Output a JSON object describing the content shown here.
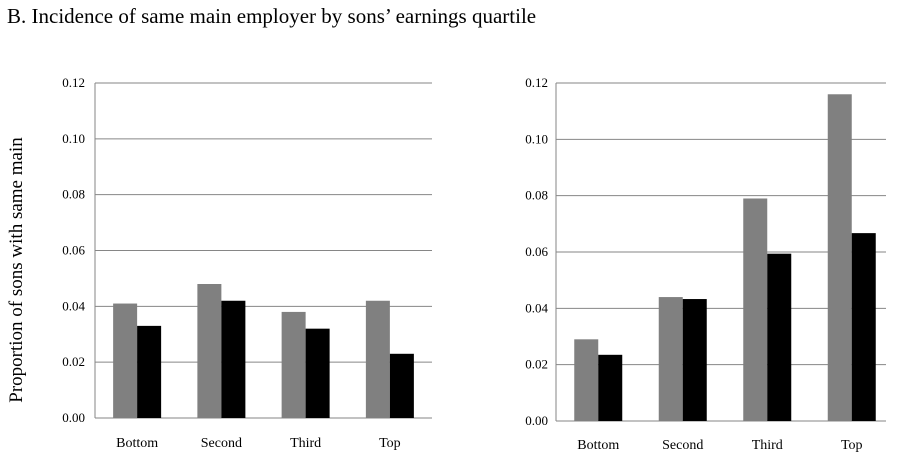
{
  "figure": {
    "title": "B. Incidence of same main employer by sons’ earnings quartile",
    "ylabel": "Proportion of sons with same main"
  },
  "colors": {
    "series_1": "#808080",
    "series_2": "#000000",
    "gridline": "#868686",
    "text": "#000000"
  },
  "chart_data": [
    {
      "type": "bar",
      "title": "",
      "xlabel": "",
      "ylabel": "Proportion of sons with same main",
      "categories": [
        "Bottom",
        "Second",
        "Third",
        "Top"
      ],
      "ylim": [
        0,
        0.12
      ],
      "yticks": [
        "0.00",
        "0.02",
        "0.04",
        "0.06",
        "0.08",
        "0.10",
        "0.12"
      ],
      "grid": true,
      "legend": "none",
      "series": [
        {
          "values": [
            0.041,
            0.048,
            0.038,
            0.042
          ]
        },
        {
          "values": [
            0.033,
            0.042,
            0.032,
            0.023
          ]
        }
      ]
    },
    {
      "type": "bar",
      "title": "",
      "xlabel": "",
      "ylabel": "",
      "categories": [
        "Bottom",
        "Second",
        "Third",
        "Top"
      ],
      "ylim": [
        0,
        0.12
      ],
      "yticks": [
        "0.00",
        "0.02",
        "0.04",
        "0.06",
        "0.08",
        "0.10",
        "0.12"
      ],
      "grid": true,
      "legend": "none",
      "series": [
        {
          "values": [
            0.029,
            0.044,
            0.079,
            0.116
          ]
        },
        {
          "values": [
            0.0235,
            0.0433,
            0.0594,
            0.0667
          ]
        }
      ]
    }
  ]
}
